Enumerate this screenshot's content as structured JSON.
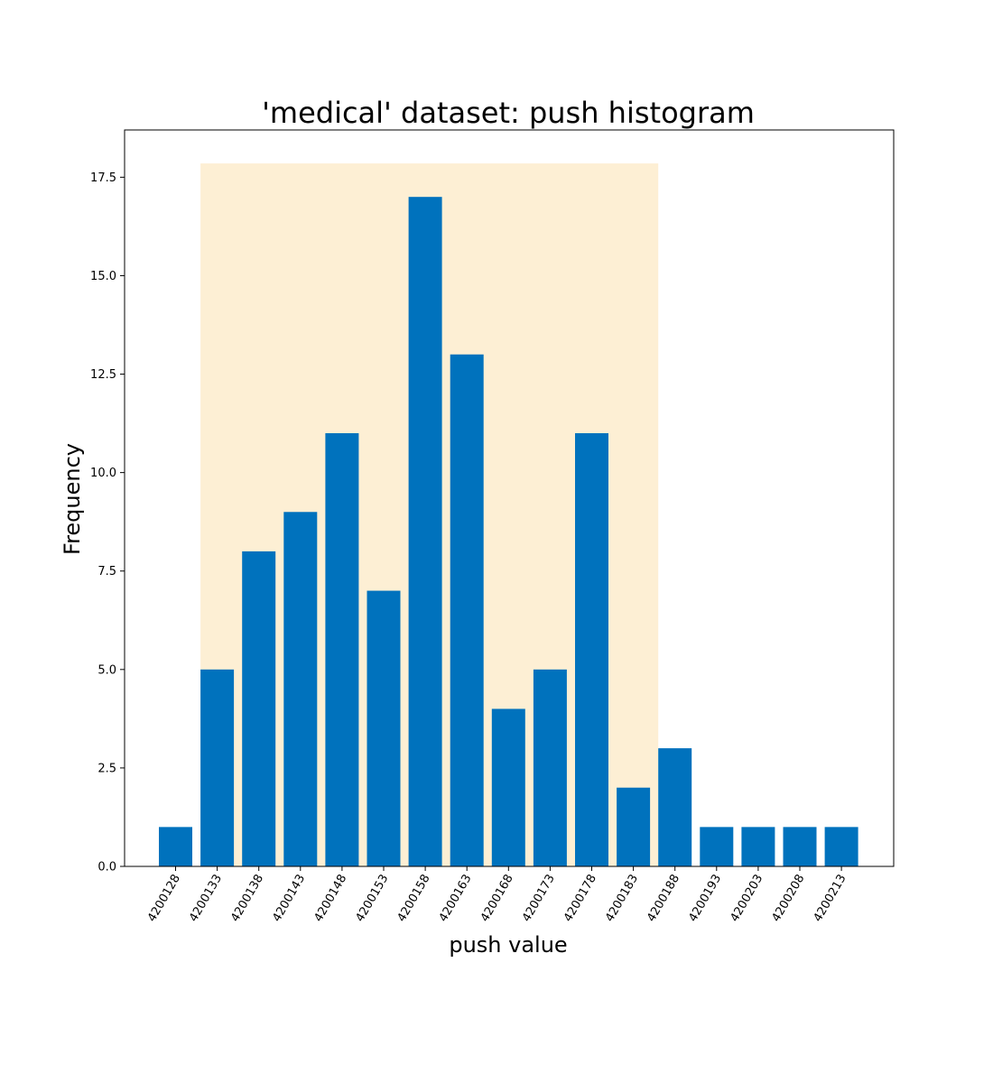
{
  "chart_data": {
    "type": "bar",
    "title": "'medical' dataset: push histogram",
    "xlabel": "push value",
    "ylabel": "Frequency",
    "categories": [
      "4200128",
      "4200133",
      "4200138",
      "4200143",
      "4200148",
      "4200153",
      "4200158",
      "4200163",
      "4200168",
      "4200173",
      "4200178",
      "4200183",
      "4200188",
      "4200193",
      "4200203",
      "4200208",
      "4200213"
    ],
    "values": [
      1,
      5,
      8,
      9,
      11,
      7,
      17,
      13,
      4,
      5,
      11,
      2,
      3,
      1,
      1,
      1,
      1
    ],
    "ylim": [
      0,
      18.7
    ],
    "yticks": [
      "0.0",
      "2.5",
      "5.0",
      "7.5",
      "10.0",
      "12.5",
      "15.0",
      "17.5"
    ],
    "grid": false,
    "bar_color": "#0072bd",
    "highlight": {
      "color": "#fdefd4",
      "from_category": "4200133",
      "to_category": "4200188",
      "y_top": 17.85
    }
  }
}
